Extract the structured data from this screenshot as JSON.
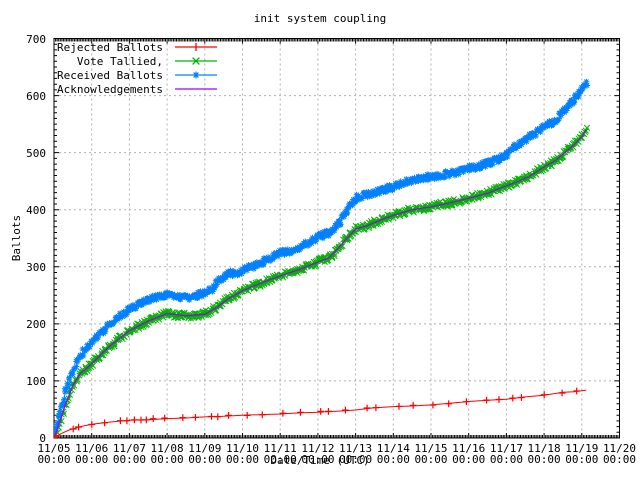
{
  "chart": {
    "title": "init system coupling",
    "xlabel": "Date/Time (UTC)",
    "ylabel": "Ballots"
  },
  "legend": {
    "position": "top-left-inside",
    "items": [
      {
        "label": "Rejected Ballots",
        "color": "#ff0000",
        "marker": "plus"
      },
      {
        "label": "Vote Tallied,",
        "color": "#00b400",
        "marker": "cross"
      },
      {
        "label": "Received Ballots",
        "color": "#0080ff",
        "marker": "star"
      },
      {
        "label": "Acknowledgements",
        "color": "#a000f0",
        "marker": "none"
      }
    ]
  },
  "chart_data": {
    "type": "line",
    "title": "init system coupling",
    "xlabel": "Date/Time (UTC)",
    "ylabel": "Ballots",
    "grid": true,
    "x_axis": {
      "start": "11/05 00:00",
      "end": "11/20 00:00",
      "range_days": 15,
      "ticklabels": [
        "11/05",
        "11/06",
        "11/07",
        "11/08",
        "11/09",
        "11/10",
        "11/11",
        "11/12",
        "11/13",
        "11/14",
        "11/15",
        "11/16",
        "11/17",
        "11/18",
        "11/19",
        "11/20"
      ],
      "ticklabel_line2": "00:00"
    },
    "y_axis": {
      "min": 0,
      "max": 700,
      "ticks": [
        0,
        100,
        200,
        300,
        400,
        500,
        600,
        700
      ]
    },
    "colors": {
      "grid": "#b0b0b0",
      "border": "#000000",
      "background": "#ffffff"
    },
    "series": [
      {
        "name": "Rejected Ballots",
        "color": "#ff0000",
        "marker": "plus",
        "style": "line+sparse-markers",
        "points": [
          [
            0,
            1
          ],
          [
            0.2,
            8
          ],
          [
            0.4,
            14
          ],
          [
            0.7,
            20
          ],
          [
            1,
            24
          ],
          [
            1.5,
            28
          ],
          [
            2,
            31
          ],
          [
            2.5,
            32
          ],
          [
            3,
            34
          ],
          [
            3.5,
            35
          ],
          [
            4,
            37
          ],
          [
            4.5,
            38
          ],
          [
            5,
            40
          ],
          [
            5.5,
            41
          ],
          [
            6,
            42
          ],
          [
            6.5,
            44
          ],
          [
            7,
            45
          ],
          [
            7.5,
            47
          ],
          [
            8,
            49
          ],
          [
            8.5,
            53
          ],
          [
            9,
            55
          ],
          [
            9.5,
            56
          ],
          [
            10,
            58
          ],
          [
            10.5,
            61
          ],
          [
            11,
            64
          ],
          [
            11.5,
            66
          ],
          [
            12,
            68
          ],
          [
            12.5,
            72
          ],
          [
            13,
            75
          ],
          [
            13.5,
            80
          ],
          [
            13.8,
            81
          ],
          [
            14.12,
            84
          ]
        ]
      },
      {
        "name": "Vote Tallied,",
        "color": "#00b400",
        "marker": "cross",
        "style": "dense-scatter-band",
        "points": [
          [
            0,
            0
          ],
          [
            0.15,
            28
          ],
          [
            0.3,
            58
          ],
          [
            0.5,
            92
          ],
          [
            0.7,
            113
          ],
          [
            1,
            130
          ],
          [
            1.3,
            150
          ],
          [
            1.5,
            162
          ],
          [
            2,
            188
          ],
          [
            2.5,
            205
          ],
          [
            3,
            218
          ],
          [
            3.5,
            214
          ],
          [
            4,
            217
          ],
          [
            4.3,
            228
          ],
          [
            4.6,
            243
          ],
          [
            5,
            258
          ],
          [
            5.5,
            272
          ],
          [
            6,
            284
          ],
          [
            6.5,
            295
          ],
          [
            7,
            308
          ],
          [
            7.3,
            316
          ],
          [
            7.5,
            330
          ],
          [
            7.8,
            352
          ],
          [
            8,
            366
          ],
          [
            8.3,
            372
          ],
          [
            8.7,
            383
          ],
          [
            9,
            390
          ],
          [
            9.5,
            400
          ],
          [
            10,
            405
          ],
          [
            10.5,
            412
          ],
          [
            11,
            420
          ],
          [
            11.5,
            429
          ],
          [
            12,
            442
          ],
          [
            12.3,
            449
          ],
          [
            12.6,
            458
          ],
          [
            13,
            475
          ],
          [
            13.3,
            486
          ],
          [
            13.6,
            503
          ],
          [
            13.8,
            514
          ],
          [
            14,
            528
          ],
          [
            14.12,
            540
          ]
        ]
      },
      {
        "name": "Received Ballots",
        "color": "#0080ff",
        "marker": "star",
        "style": "dense-scatter-band",
        "points": [
          [
            0,
            2
          ],
          [
            0.15,
            45
          ],
          [
            0.3,
            82
          ],
          [
            0.5,
            118
          ],
          [
            0.7,
            145
          ],
          [
            1,
            166
          ],
          [
            1.3,
            186
          ],
          [
            1.5,
            200
          ],
          [
            2,
            226
          ],
          [
            2.5,
            243
          ],
          [
            3,
            250
          ],
          [
            3.5,
            246
          ],
          [
            4,
            253
          ],
          [
            4.2,
            262
          ],
          [
            4.35,
            275
          ],
          [
            4.6,
            286
          ],
          [
            5,
            293
          ],
          [
            5.5,
            307
          ],
          [
            5.8,
            318
          ],
          [
            6,
            325
          ],
          [
            6.5,
            331
          ],
          [
            6.8,
            344
          ],
          [
            7,
            352
          ],
          [
            7.4,
            362
          ],
          [
            7.6,
            380
          ],
          [
            7.8,
            405
          ],
          [
            8,
            420
          ],
          [
            8.3,
            427
          ],
          [
            8.7,
            434
          ],
          [
            9,
            440
          ],
          [
            9.3,
            449
          ],
          [
            9.6,
            453
          ],
          [
            10,
            458
          ],
          [
            10.5,
            463
          ],
          [
            11,
            472
          ],
          [
            11.5,
            481
          ],
          [
            11.8,
            488
          ],
          [
            12,
            495
          ],
          [
            12.2,
            509
          ],
          [
            12.5,
            523
          ],
          [
            12.8,
            535
          ],
          [
            13,
            545
          ],
          [
            13.3,
            557
          ],
          [
            13.6,
            578
          ],
          [
            13.8,
            592
          ],
          [
            14,
            612
          ],
          [
            14.12,
            622
          ]
        ]
      },
      {
        "name": "Acknowledgements",
        "color": "#a000f0",
        "marker": "none",
        "style": "line",
        "points": [
          [
            0,
            0
          ],
          [
            0.15,
            28
          ],
          [
            0.3,
            58
          ],
          [
            0.5,
            92
          ],
          [
            0.7,
            113
          ],
          [
            1,
            130
          ],
          [
            1.3,
            150
          ],
          [
            1.5,
            162
          ],
          [
            2,
            188
          ],
          [
            2.5,
            205
          ],
          [
            3,
            218
          ],
          [
            3.5,
            214
          ],
          [
            4,
            217
          ],
          [
            4.3,
            228
          ],
          [
            4.6,
            243
          ],
          [
            5,
            258
          ],
          [
            5.5,
            272
          ],
          [
            6,
            284
          ],
          [
            6.5,
            295
          ],
          [
            7,
            308
          ],
          [
            7.3,
            316
          ],
          [
            7.5,
            330
          ],
          [
            7.8,
            352
          ],
          [
            8,
            366
          ],
          [
            8.3,
            372
          ],
          [
            8.7,
            383
          ],
          [
            9,
            390
          ],
          [
            9.5,
            400
          ],
          [
            10,
            405
          ],
          [
            10.5,
            412
          ],
          [
            11,
            420
          ],
          [
            11.5,
            429
          ],
          [
            12,
            442
          ],
          [
            12.3,
            449
          ],
          [
            12.6,
            458
          ],
          [
            13,
            475
          ],
          [
            13.3,
            486
          ],
          [
            13.6,
            503
          ],
          [
            13.8,
            514
          ],
          [
            14,
            528
          ],
          [
            14.12,
            540
          ]
        ]
      }
    ],
    "data_end_day": 14.12
  }
}
